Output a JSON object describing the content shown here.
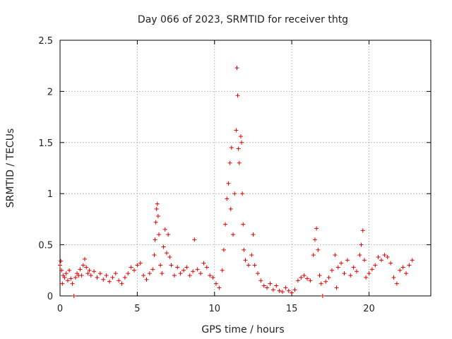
{
  "chart_data": {
    "type": "scatter",
    "title": "Day 066 of 2023, SRMTID for receiver thtg",
    "xlabel": "GPS time / hours",
    "ylabel": "SRMTID / TECUs",
    "xlim": [
      0,
      24
    ],
    "ylim": [
      0,
      2.5
    ],
    "xticks": [
      "0",
      "5",
      "10",
      "15",
      "20"
    ],
    "xtick_values": [
      0,
      5,
      10,
      15,
      20
    ],
    "yticks": [
      "0",
      "0.5",
      "1",
      "1.5",
      "2",
      "2.5"
    ],
    "ytick_values": [
      0,
      0.5,
      1,
      1.5,
      2,
      2.5
    ],
    "grid": true,
    "marker": "plus",
    "series": [
      {
        "name": "thtg",
        "color": "#e00000",
        "points": [
          [
            0.0,
            0.3
          ],
          [
            0.05,
            0.34
          ],
          [
            0.1,
            0.25
          ],
          [
            0.15,
            0.12
          ],
          [
            0.2,
            0.2
          ],
          [
            0.3,
            0.18
          ],
          [
            0.4,
            0.22
          ],
          [
            0.5,
            0.15
          ],
          [
            0.6,
            0.25
          ],
          [
            0.7,
            0.17
          ],
          [
            0.8,
            0.12
          ],
          [
            0.9,
            0.0
          ],
          [
            1.0,
            0.18
          ],
          [
            1.1,
            0.22
          ],
          [
            1.2,
            0.2
          ],
          [
            1.3,
            0.26
          ],
          [
            1.4,
            0.2
          ],
          [
            1.5,
            0.3
          ],
          [
            1.6,
            0.36
          ],
          [
            1.7,
            0.28
          ],
          [
            1.8,
            0.22
          ],
          [
            1.9,
            0.25
          ],
          [
            2.0,
            0.2
          ],
          [
            2.2,
            0.24
          ],
          [
            2.4,
            0.18
          ],
          [
            2.6,
            0.22
          ],
          [
            2.8,
            0.16
          ],
          [
            3.0,
            0.2
          ],
          [
            3.2,
            0.14
          ],
          [
            3.4,
            0.18
          ],
          [
            3.6,
            0.22
          ],
          [
            3.8,
            0.15
          ],
          [
            4.0,
            0.12
          ],
          [
            4.2,
            0.18
          ],
          [
            4.4,
            0.22
          ],
          [
            4.6,
            0.28
          ],
          [
            4.8,
            0.25
          ],
          [
            5.0,
            0.3
          ],
          [
            5.2,
            0.32
          ],
          [
            5.4,
            0.2
          ],
          [
            5.6,
            0.16
          ],
          [
            5.8,
            0.22
          ],
          [
            6.0,
            0.26
          ],
          [
            6.1,
            0.4
          ],
          [
            6.15,
            0.55
          ],
          [
            6.2,
            0.72
          ],
          [
            6.25,
            0.85
          ],
          [
            6.3,
            0.9
          ],
          [
            6.35,
            0.78
          ],
          [
            6.4,
            0.6
          ],
          [
            6.5,
            0.3
          ],
          [
            6.6,
            0.22
          ],
          [
            6.7,
            0.48
          ],
          [
            6.8,
            0.65
          ],
          [
            6.9,
            0.42
          ],
          [
            7.0,
            0.6
          ],
          [
            7.1,
            0.38
          ],
          [
            7.2,
            0.3
          ],
          [
            7.4,
            0.2
          ],
          [
            7.6,
            0.28
          ],
          [
            7.8,
            0.22
          ],
          [
            8.0,
            0.25
          ],
          [
            8.2,
            0.28
          ],
          [
            8.4,
            0.2
          ],
          [
            8.6,
            0.24
          ],
          [
            8.7,
            0.55
          ],
          [
            8.9,
            0.26
          ],
          [
            9.1,
            0.22
          ],
          [
            9.3,
            0.32
          ],
          [
            9.5,
            0.28
          ],
          [
            9.7,
            0.2
          ],
          [
            9.9,
            0.18
          ],
          [
            10.1,
            0.12
          ],
          [
            10.3,
            0.08
          ],
          [
            10.5,
            0.25
          ],
          [
            10.6,
            0.45
          ],
          [
            10.7,
            0.7
          ],
          [
            10.8,
            0.95
          ],
          [
            10.9,
            1.1
          ],
          [
            11.0,
            1.3
          ],
          [
            11.05,
            0.85
          ],
          [
            11.1,
            1.45
          ],
          [
            11.2,
            0.6
          ],
          [
            11.3,
            1.0
          ],
          [
            11.4,
            1.62
          ],
          [
            11.45,
            2.23
          ],
          [
            11.5,
            1.96
          ],
          [
            11.55,
            1.44
          ],
          [
            11.6,
            1.3
          ],
          [
            11.7,
            1.56
          ],
          [
            11.75,
            1.5
          ],
          [
            11.8,
            1.0
          ],
          [
            11.85,
            0.7
          ],
          [
            11.9,
            0.45
          ],
          [
            12.0,
            0.35
          ],
          [
            12.2,
            0.3
          ],
          [
            12.4,
            0.4
          ],
          [
            12.5,
            0.6
          ],
          [
            12.6,
            0.3
          ],
          [
            12.8,
            0.22
          ],
          [
            13.0,
            0.15
          ],
          [
            13.2,
            0.1
          ],
          [
            13.4,
            0.08
          ],
          [
            13.6,
            0.12
          ],
          [
            13.8,
            0.06
          ],
          [
            14.0,
            0.1
          ],
          [
            14.2,
            0.05
          ],
          [
            14.4,
            0.04
          ],
          [
            14.6,
            0.08
          ],
          [
            14.8,
            0.05
          ],
          [
            15.0,
            0.03
          ],
          [
            15.2,
            0.06
          ],
          [
            15.4,
            0.15
          ],
          [
            15.6,
            0.18
          ],
          [
            15.8,
            0.2
          ],
          [
            16.0,
            0.17
          ],
          [
            16.2,
            0.15
          ],
          [
            16.4,
            0.4
          ],
          [
            16.5,
            0.55
          ],
          [
            16.6,
            0.66
          ],
          [
            16.7,
            0.45
          ],
          [
            16.8,
            0.2
          ],
          [
            16.9,
            0.12
          ],
          [
            17.0,
            0.0
          ],
          [
            17.2,
            0.14
          ],
          [
            17.4,
            0.18
          ],
          [
            17.6,
            0.25
          ],
          [
            17.8,
            0.4
          ],
          [
            17.9,
            0.08
          ],
          [
            18.0,
            0.28
          ],
          [
            18.2,
            0.32
          ],
          [
            18.4,
            0.22
          ],
          [
            18.6,
            0.35
          ],
          [
            18.8,
            0.2
          ],
          [
            19.0,
            0.28
          ],
          [
            19.2,
            0.24
          ],
          [
            19.4,
            0.4
          ],
          [
            19.5,
            0.5
          ],
          [
            19.6,
            0.64
          ],
          [
            19.7,
            0.35
          ],
          [
            19.8,
            0.18
          ],
          [
            20.0,
            0.22
          ],
          [
            20.2,
            0.26
          ],
          [
            20.4,
            0.3
          ],
          [
            20.6,
            0.38
          ],
          [
            20.8,
            0.35
          ],
          [
            21.0,
            0.4
          ],
          [
            21.2,
            0.38
          ],
          [
            21.4,
            0.32
          ],
          [
            21.6,
            0.18
          ],
          [
            21.8,
            0.12
          ],
          [
            22.0,
            0.25
          ],
          [
            22.2,
            0.28
          ],
          [
            22.4,
            0.22
          ],
          [
            22.6,
            0.3
          ],
          [
            22.8,
            0.35
          ]
        ]
      }
    ]
  }
}
